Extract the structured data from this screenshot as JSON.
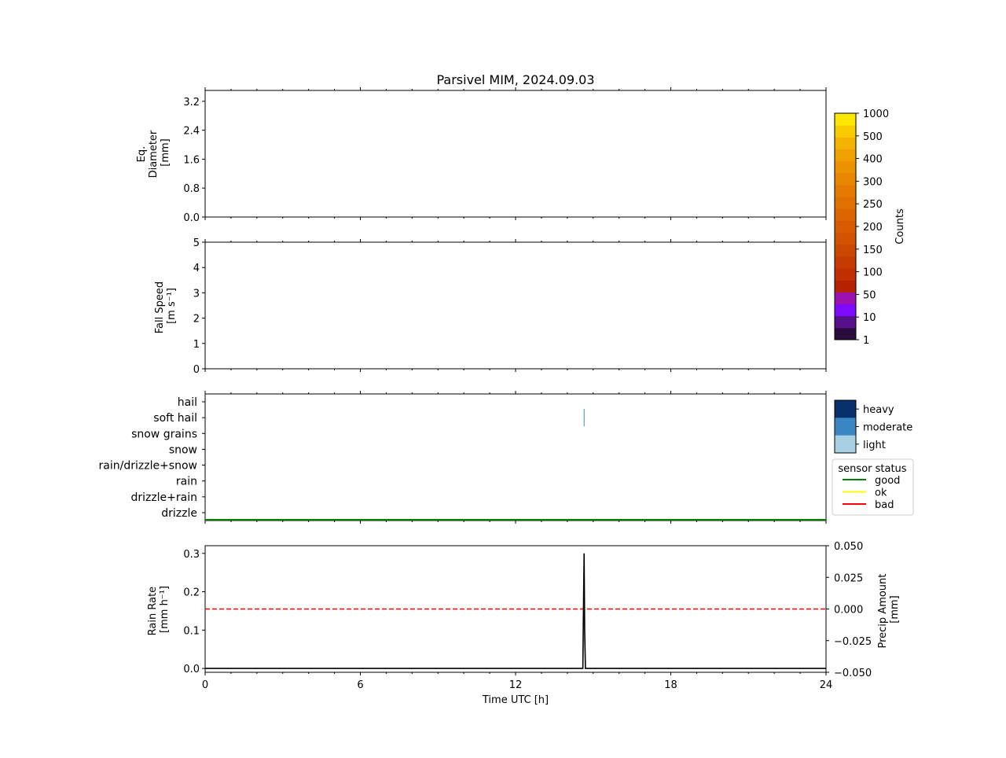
{
  "title": "Parsivel MIM, 2024.09.03",
  "panels": {
    "diameter": {
      "ylabel_lines": [
        "Eq.",
        "Diameter",
        "[mm]"
      ],
      "yticks": [
        "0.0",
        "0.8",
        "1.6",
        "2.4",
        "3.2"
      ],
      "ylim": [
        0,
        3.5
      ]
    },
    "speed": {
      "ylabel_lines": [
        "Fall Speed",
        "[m s⁻¹]"
      ],
      "yticks": [
        "0",
        "1",
        "2",
        "3",
        "4",
        "5"
      ],
      "ylim": [
        0,
        5
      ]
    },
    "weather": {
      "yticks": [
        "drizzle",
        "drizzle+rain",
        "rain",
        "rain/drizzle+snow",
        "snow",
        "snow grains",
        "soft hail",
        "hail"
      ]
    },
    "rain": {
      "ylabel_lines": [
        "Rain Rate",
        "[mm h⁻¹]"
      ],
      "yticks": [
        "0.0",
        "0.1",
        "0.2",
        "0.3"
      ],
      "ylim": [
        -0.01,
        0.32
      ],
      "right_ylabel_lines": [
        "Precip Amount",
        "[mm]"
      ],
      "right_yticks": [
        "0.050",
        "0.025",
        "0.000",
        "−0.025",
        "−0.050"
      ],
      "right_ylim": [
        -0.05,
        0.05
      ]
    }
  },
  "xaxis": {
    "label": "Time UTC [h]",
    "ticks": [
      "0",
      "6",
      "12",
      "18",
      "24"
    ],
    "xlim": [
      0,
      24
    ]
  },
  "colorbar": {
    "label": "Counts",
    "ticks": [
      "1",
      "10",
      "50",
      "100",
      "150",
      "200",
      "250",
      "300",
      "400",
      "500",
      "1000"
    ],
    "colors": [
      "#2b0a3d",
      "#55108a",
      "#7e0bff",
      "#9b12b0",
      "#b52200",
      "#c03000",
      "#c63c00",
      "#cc4700",
      "#d35200",
      "#d85b00",
      "#dc6500",
      "#e07000",
      "#e47a00",
      "#e88600",
      "#ec9200",
      "#f0a000",
      "#f4b200",
      "#f8cc00",
      "#ffe800"
    ]
  },
  "intensity_legend": {
    "items": [
      {
        "label": "heavy",
        "color": "#08306b"
      },
      {
        "label": "moderate",
        "color": "#3a87c4"
      },
      {
        "label": "light",
        "color": "#a9cfe4"
      }
    ]
  },
  "status_legend": {
    "title": "sensor status",
    "items": [
      {
        "label": "good",
        "color": "#008000"
      },
      {
        "label": "ok",
        "color": "#ffff00"
      },
      {
        "label": "bad",
        "color": "#ff0000"
      }
    ]
  },
  "chart_data": [
    {
      "type": "heatmap",
      "title": "Parsivel MIM, 2024.09.03",
      "ylabel": "Eq. Diameter [mm]",
      "xlim": [
        0,
        24
      ],
      "ylim": [
        0,
        3.5
      ],
      "values": []
    },
    {
      "type": "heatmap",
      "ylabel": "Fall Speed [m s⁻¹]",
      "xlim": [
        0,
        24
      ],
      "ylim": [
        0,
        5
      ],
      "values": []
    },
    {
      "type": "scatter",
      "categories": [
        "drizzle",
        "drizzle+rain",
        "rain",
        "rain/drizzle+snow",
        "snow",
        "snow grains",
        "soft hail",
        "hail"
      ],
      "events": [
        {
          "x": 14.65,
          "category": "soft hail",
          "intensity": "moderate"
        }
      ],
      "sensor_status": {
        "x": [
          0,
          24
        ],
        "status": "good"
      }
    },
    {
      "type": "line",
      "xlabel": "Time UTC [h]",
      "ylabel": "Rain Rate [mm h⁻¹]",
      "xlim": [
        0,
        24
      ],
      "ylim": [
        -0.01,
        0.32
      ],
      "series": [
        {
          "color": "#000000",
          "x": [
            0,
            14.6,
            14.62,
            14.65,
            14.67,
            14.7,
            24
          ],
          "values": [
            0,
            0,
            0.12,
            0.3,
            0.1,
            0,
            0
          ]
        },
        {
          "color": "#ff0000",
          "style": "dashed",
          "axis": "right",
          "x": [
            0,
            24
          ],
          "values": [
            0,
            0
          ]
        }
      ],
      "right_ylabel": "Precip Amount [mm]",
      "right_ylim": [
        -0.05,
        0.05
      ]
    }
  ]
}
